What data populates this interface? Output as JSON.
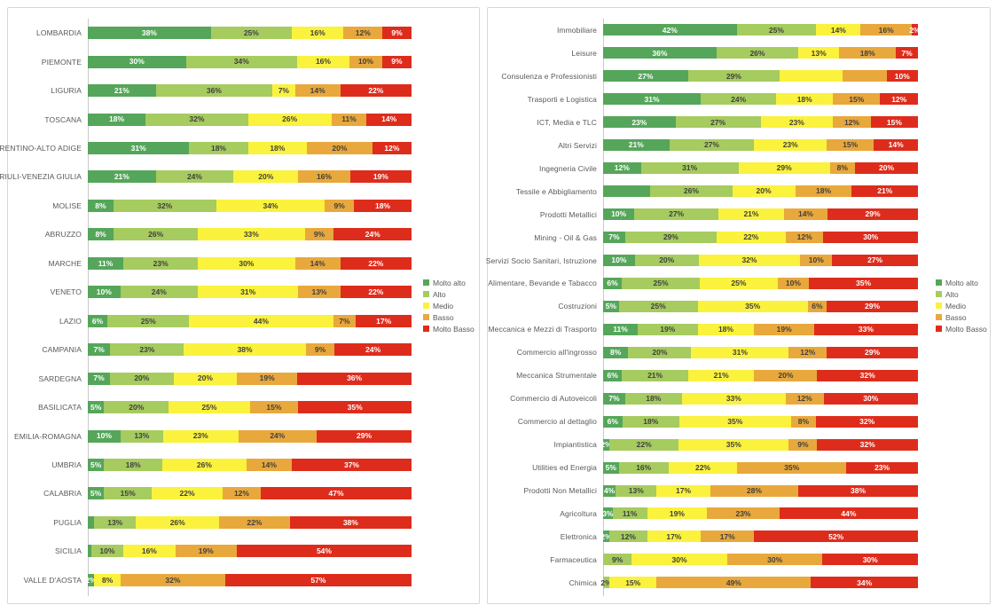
{
  "chart_data": [
    {
      "type": "bar",
      "stacked": true,
      "orientation": "horizontal",
      "unit": "%",
      "title": "",
      "xlabel": "",
      "ylabel": "",
      "xlim": [
        0,
        100
      ],
      "grid": false,
      "legend_position": "right",
      "legend": [
        "Molto alto",
        "Alto",
        "Medio",
        "Basso",
        "Molto Basso"
      ],
      "categories": [
        "LOMBARDIA",
        "PIEMONTE",
        "LIGURIA",
        "TOSCANA",
        "TRENTINO-ALTO ADIGE",
        "FRIULI-VENEZIA GIULIA",
        "MOLISE",
        "ABRUZZO",
        "MARCHE",
        "VENETO",
        "LAZIO",
        "CAMPANIA",
        "SARDEGNA",
        "BASILICATA",
        "EMILIA-ROMAGNA",
        "UMBRIA",
        "CALABRIA",
        "PUGLIA",
        "SICILIA",
        "VALLE D'AOSTA"
      ],
      "series": [
        {
          "name": "Molto alto",
          "color": "#55A65A",
          "label_color": "#ffffff",
          "values": [
            38,
            30,
            21,
            18,
            31,
            21,
            8,
            8,
            11,
            10,
            6,
            7,
            7,
            5,
            10,
            5,
            5,
            2,
            1,
            2
          ]
        },
        {
          "name": "Alto",
          "color": "#A6CB5F",
          "label_color": "#3f3f3f",
          "values": [
            25,
            34,
            36,
            32,
            18,
            24,
            32,
            26,
            23,
            24,
            25,
            23,
            20,
            20,
            13,
            18,
            15,
            13,
            10,
            0
          ]
        },
        {
          "name": "Medio",
          "color": "#FAF23C",
          "label_color": "#3f3f3f",
          "values": [
            16,
            16,
            7,
            26,
            18,
            20,
            34,
            33,
            30,
            31,
            44,
            38,
            20,
            25,
            23,
            26,
            22,
            26,
            16,
            8
          ]
        },
        {
          "name": "Basso",
          "color": "#E9A83C",
          "label_color": "#3f3f3f",
          "values": [
            12,
            10,
            14,
            11,
            20,
            16,
            9,
            9,
            14,
            13,
            7,
            9,
            19,
            15,
            24,
            14,
            12,
            22,
            19,
            32
          ]
        },
        {
          "name": "Molto Basso",
          "color": "#DE2C1C",
          "label_color": "#ffffff",
          "values": [
            9,
            9,
            22,
            14,
            12,
            19,
            18,
            24,
            22,
            22,
            17,
            24,
            36,
            35,
            29,
            37,
            47,
            38,
            54,
            57
          ]
        }
      ],
      "hidden_labels": [
        [
          17,
          0
        ],
        [
          18,
          0
        ]
      ]
    },
    {
      "type": "bar",
      "stacked": true,
      "orientation": "horizontal",
      "unit": "%",
      "title": "",
      "xlabel": "",
      "ylabel": "",
      "xlim": [
        0,
        100
      ],
      "grid": false,
      "legend_position": "right",
      "legend": [
        "Molto alto",
        "Alto",
        "Medio",
        "Basso",
        "Molto Basso"
      ],
      "categories": [
        "Immobiliare",
        "Leisure",
        "Consulenza e Professionisti",
        "Trasporti e Logistica",
        "ICT, Media e TLC",
        "Altri Servizi",
        "Ingegneria Civile",
        "Tessile e Abbigliamento",
        "Prodotti Metallici",
        "Mining - Oil & Gas",
        "Servizi Socio Sanitari, Istruzione",
        "Alimentare, Bevande e Tabacco",
        "Costruzioni",
        "Meccanica e Mezzi di Trasporto",
        "Commercio all'ingrosso",
        "Meccanica Strumentale",
        "Commercio di Autoveicoli",
        "Commercio al dettaglio",
        "Impiantistica",
        "Utilities ed Energia",
        "Prodotti Non Metallici",
        "Agricoltura",
        "Elettronica",
        "Farmaceutica",
        "Chimica"
      ],
      "series": [
        {
          "name": "Molto alto",
          "color": "#55A65A",
          "label_color": "#ffffff",
          "values": [
            42,
            36,
            27,
            31,
            23,
            21,
            12,
            15,
            10,
            7,
            10,
            6,
            5,
            11,
            8,
            6,
            7,
            6,
            2,
            5,
            4,
            3,
            2,
            0,
            0
          ]
        },
        {
          "name": "Alto",
          "color": "#A6CB5F",
          "label_color": "#3f3f3f",
          "values": [
            25,
            26,
            29,
            24,
            27,
            27,
            31,
            26,
            27,
            29,
            20,
            25,
            25,
            19,
            20,
            21,
            18,
            18,
            22,
            16,
            13,
            11,
            12,
            9,
            2
          ]
        },
        {
          "name": "Medio",
          "color": "#FAF23C",
          "label_color": "#3f3f3f",
          "values": [
            14,
            13,
            20,
            18,
            23,
            23,
            29,
            20,
            21,
            22,
            32,
            25,
            35,
            18,
            31,
            21,
            33,
            35,
            35,
            22,
            17,
            19,
            17,
            30,
            15
          ]
        },
        {
          "name": "Basso",
          "color": "#E9A83C",
          "label_color": "#3f3f3f",
          "values": [
            16,
            18,
            14,
            15,
            12,
            15,
            8,
            18,
            14,
            12,
            10,
            10,
            6,
            19,
            12,
            20,
            12,
            8,
            9,
            35,
            28,
            23,
            17,
            30,
            49
          ]
        },
        {
          "name": "Molto Basso",
          "color": "#DE2C1C",
          "label_color": "#ffffff",
          "values": [
            2,
            7,
            10,
            12,
            15,
            14,
            20,
            21,
            29,
            30,
            27,
            35,
            29,
            33,
            29,
            32,
            30,
            32,
            32,
            23,
            38,
            44,
            52,
            30,
            34
          ]
        }
      ],
      "hidden_labels": [
        [
          2,
          2
        ],
        [
          2,
          3
        ],
        [
          7,
          0
        ]
      ]
    }
  ],
  "style": {
    "panel_border_color": "#d7d7d7",
    "axis_line_color": "#c9c9c9",
    "category_text_color": "#595959",
    "legend_text_color": "#595959"
  }
}
